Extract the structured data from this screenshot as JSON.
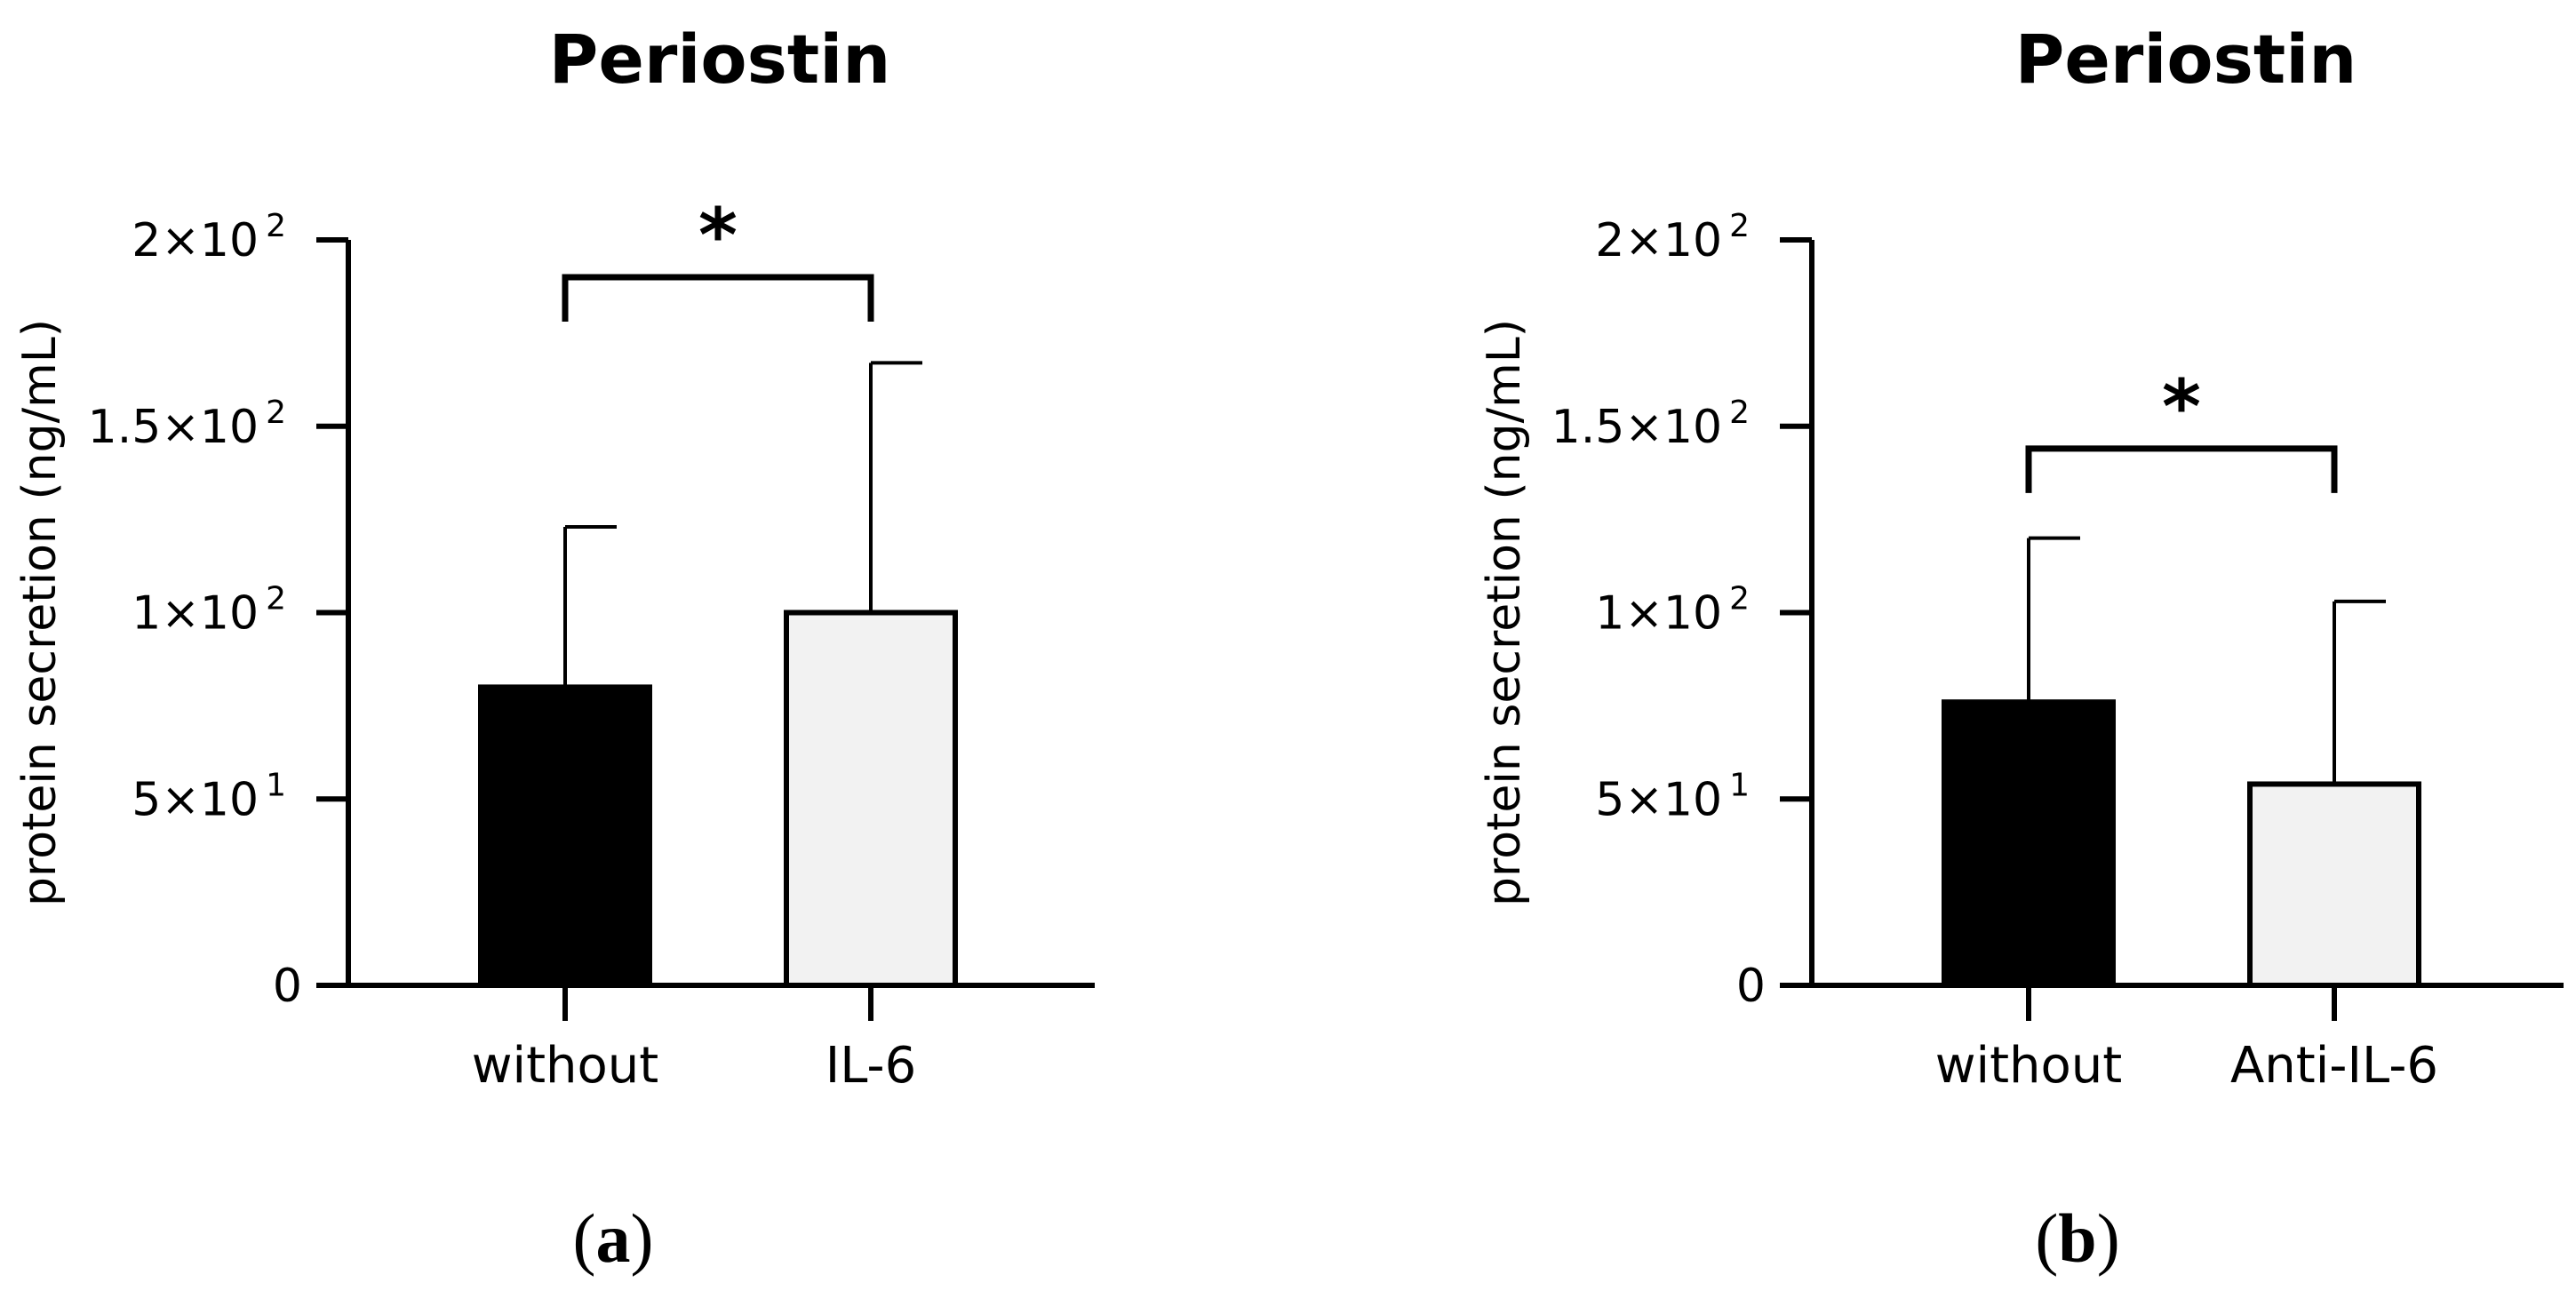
{
  "chart_data": [
    {
      "type": "bar",
      "title": "Periostin",
      "ylabel": "protein secretion (ng/mL)",
      "xlabel": "",
      "ylim": [
        0,
        200
      ],
      "yticks": [
        {
          "value": 0,
          "base": "0",
          "exp": ""
        },
        {
          "value": 50,
          "base": "5×10",
          "exp": "1"
        },
        {
          "value": 100,
          "base": "1×10",
          "exp": "2"
        },
        {
          "value": 150,
          "base": "1.5×10",
          "exp": "2"
        },
        {
          "value": 200,
          "base": "2×10",
          "exp": "2"
        }
      ],
      "categories": [
        "without",
        "IL-6"
      ],
      "values": [
        80,
        100
      ],
      "errors": [
        43,
        67
      ],
      "bar_colors": [
        "#000000",
        "#f2f2f2"
      ],
      "significance": {
        "from": 0,
        "to": 1,
        "label": "*",
        "y": 190
      },
      "panel_label": "(a)"
    },
    {
      "type": "bar",
      "title": "Periostin",
      "ylabel": "protein secretion (ng/mL)",
      "xlabel": "",
      "ylim": [
        0,
        200
      ],
      "yticks": [
        {
          "value": 0,
          "base": "0",
          "exp": ""
        },
        {
          "value": 50,
          "base": "5×10",
          "exp": "1"
        },
        {
          "value": 100,
          "base": "1×10",
          "exp": "2"
        },
        {
          "value": 150,
          "base": "1.5×10",
          "exp": "2"
        },
        {
          "value": 200,
          "base": "2×10",
          "exp": "2"
        }
      ],
      "categories": [
        "without",
        "Anti-IL-6"
      ],
      "values": [
        76,
        54
      ],
      "errors": [
        44,
        49
      ],
      "bar_colors": [
        "#000000",
        "#f2f2f2"
      ],
      "significance": {
        "from": 0,
        "to": 1,
        "label": "*",
        "y": 144
      },
      "panel_label": "(b)"
    }
  ]
}
